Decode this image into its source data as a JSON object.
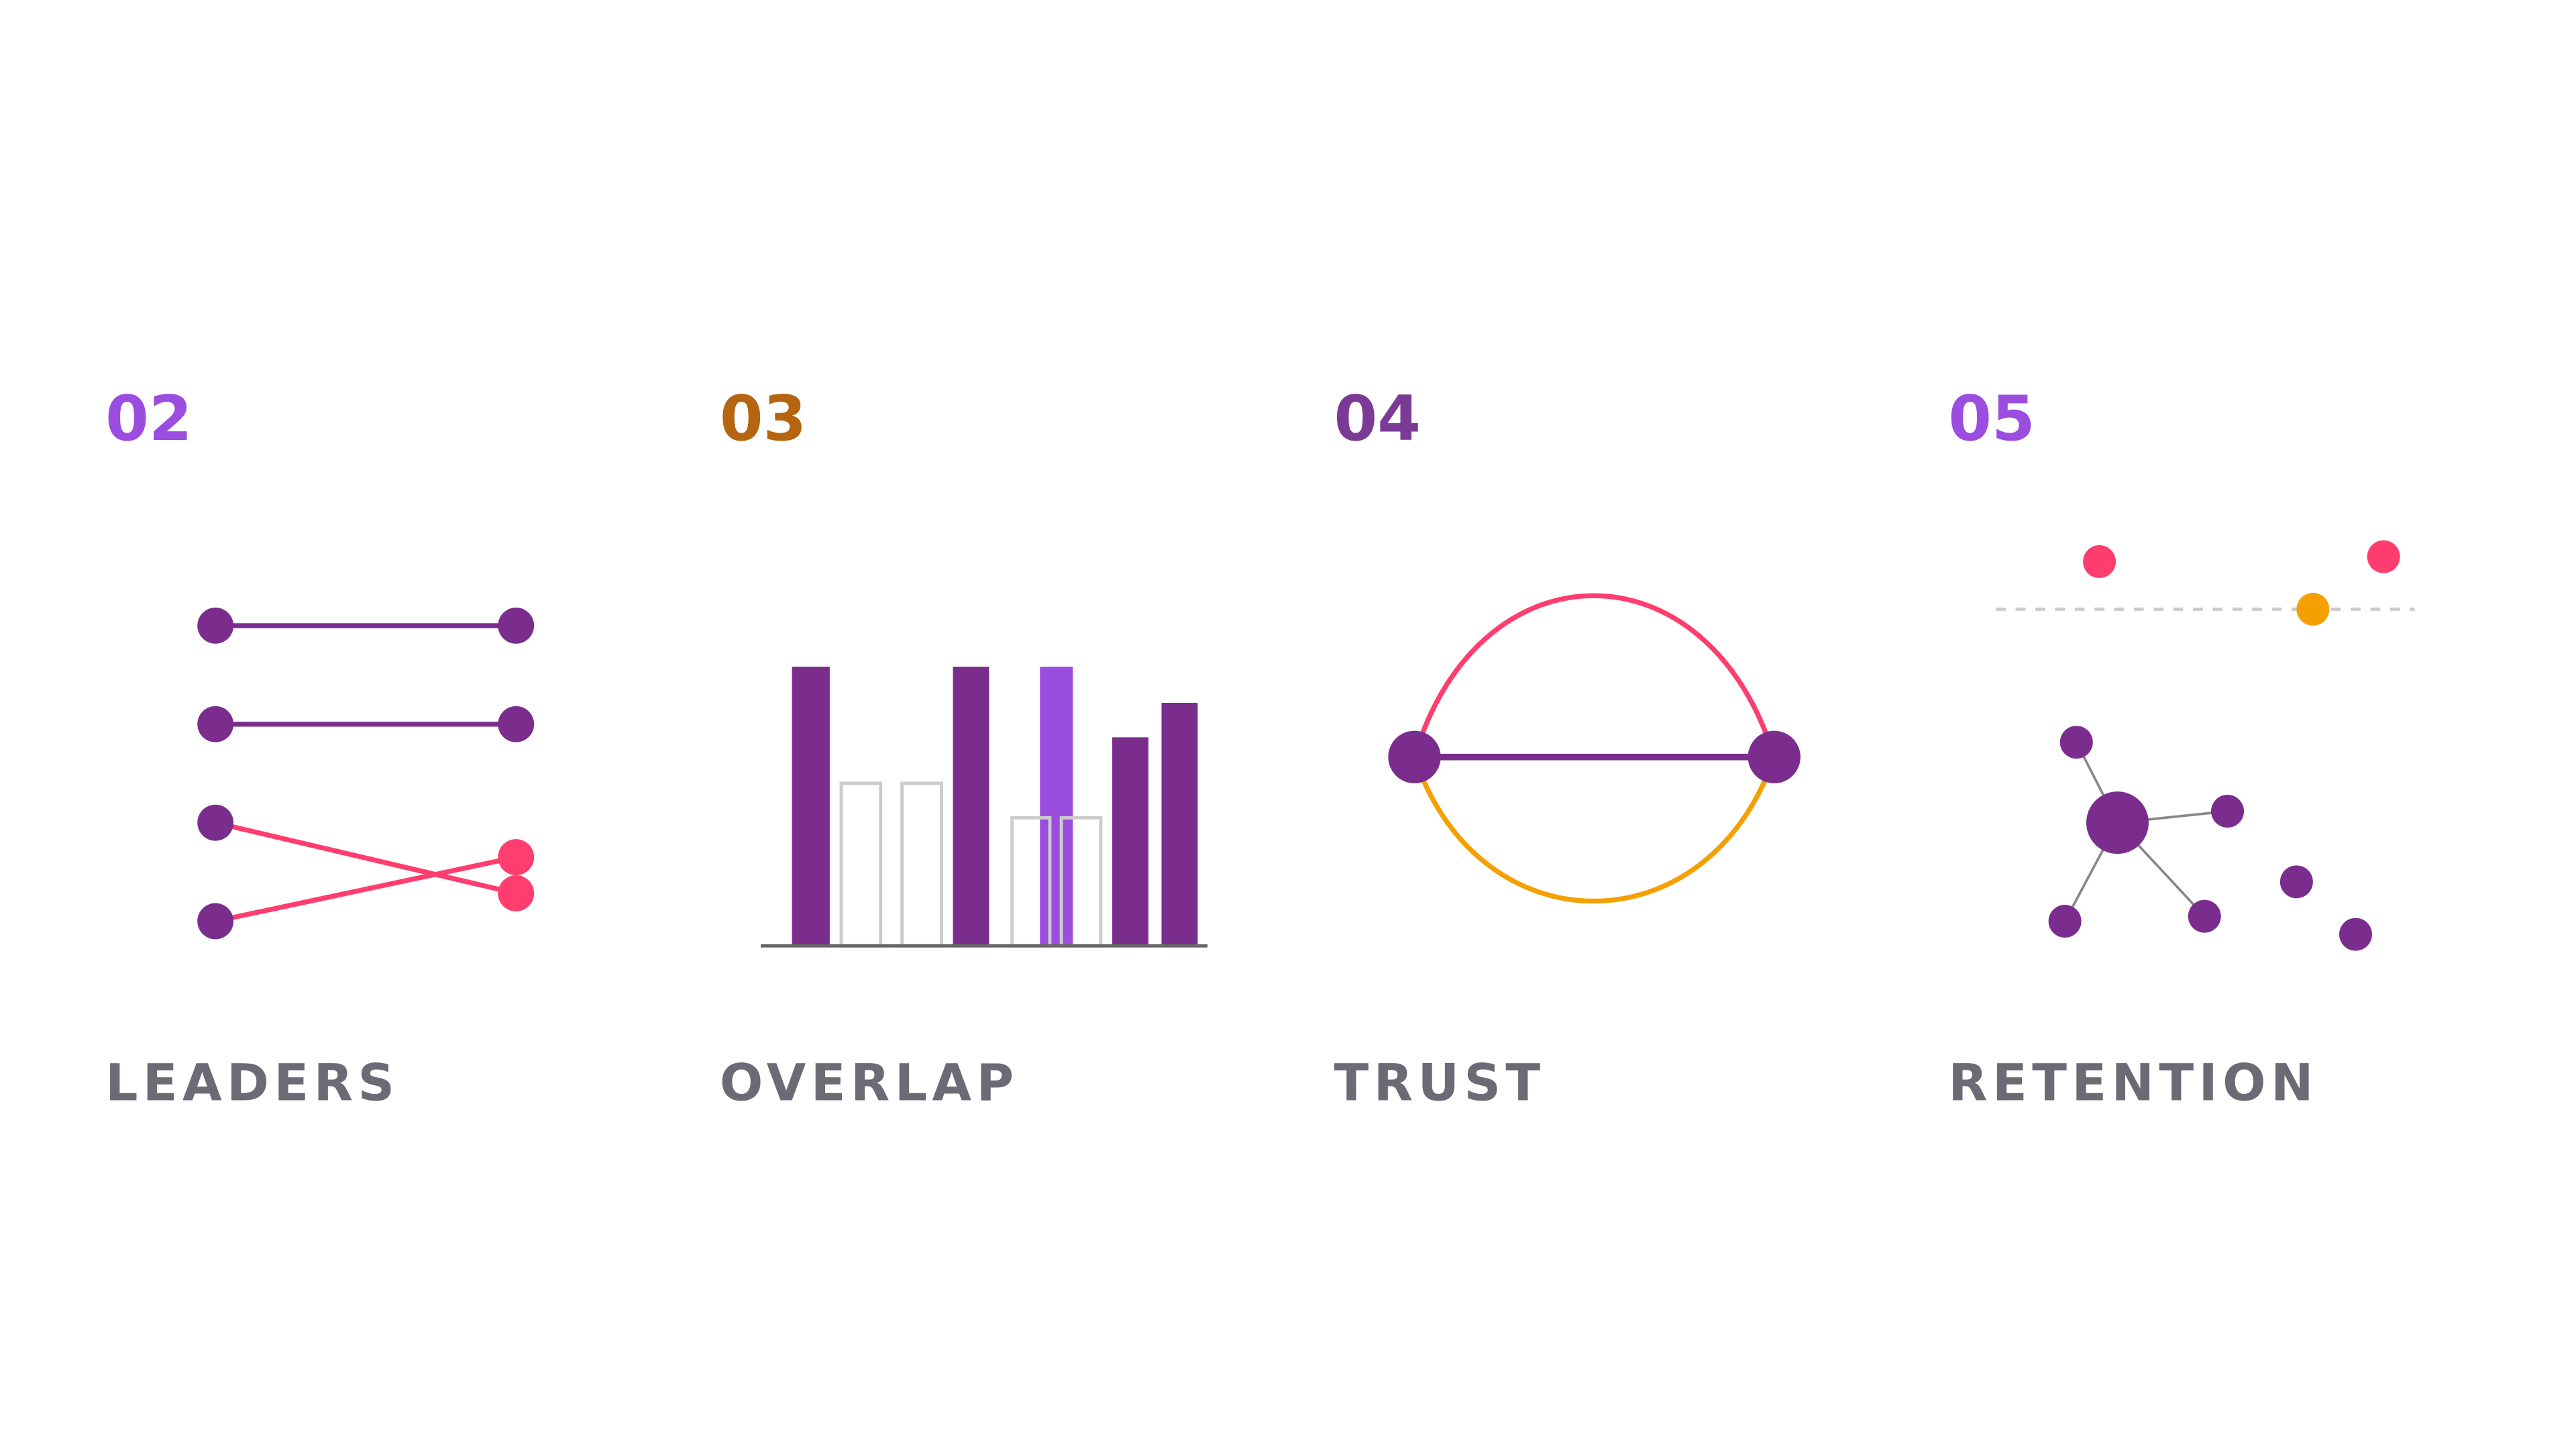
{
  "cards": [
    {
      "number": "02",
      "label": "LEADERS"
    },
    {
      "number": "03",
      "label": "OVERLAP"
    },
    {
      "number": "04",
      "label": "TRUST"
    },
    {
      "number": "05",
      "label": "RETENTION"
    }
  ]
}
